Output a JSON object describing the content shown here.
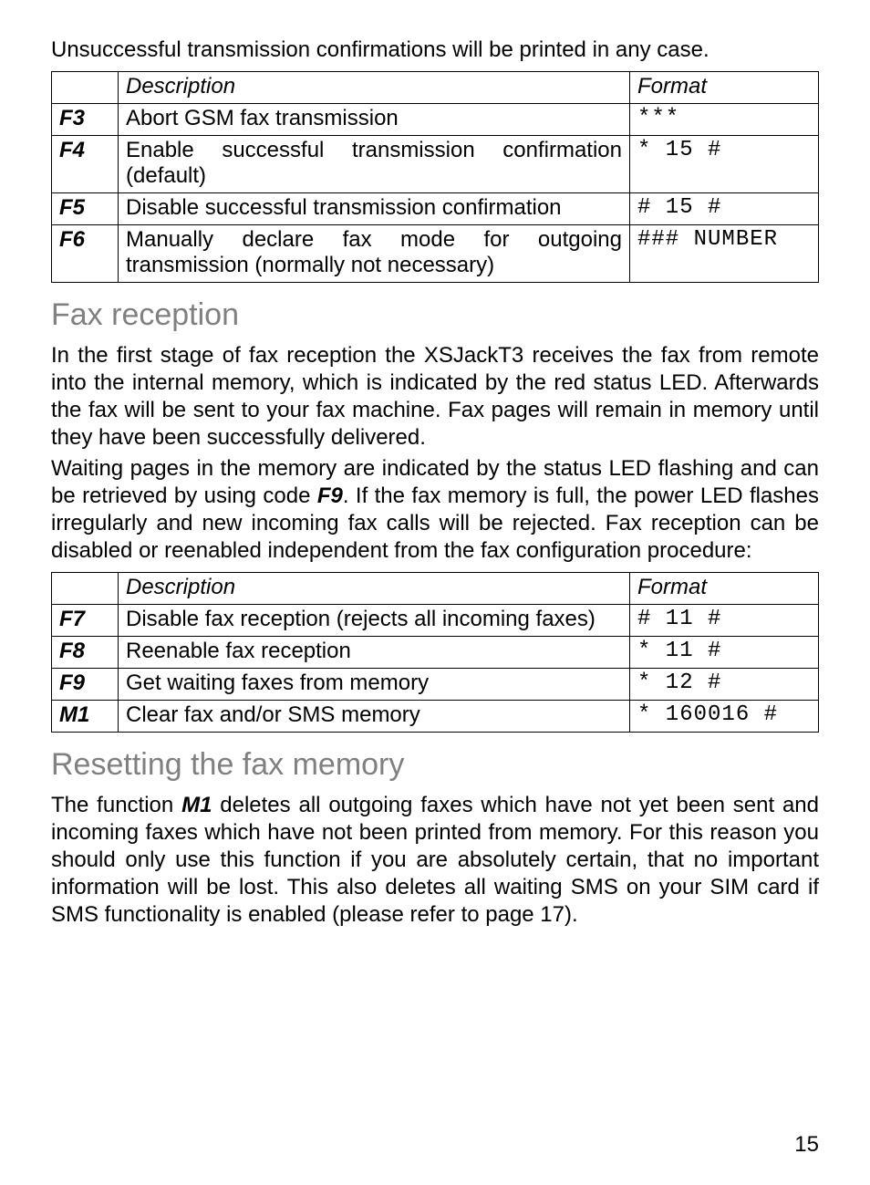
{
  "intro_line": "Unsuccessful transmission confirmations will be printed in any case.",
  "table1": {
    "headers": {
      "code": "",
      "description": "Description",
      "format": "Format"
    },
    "rows": [
      {
        "code": "F3",
        "description": "Abort GSM fax transmission",
        "format": "***"
      },
      {
        "code": "F4",
        "description": "Enable successful transmission confirma­tion (default)",
        "format": "* 15 #"
      },
      {
        "code": "F5",
        "description": "Disable successful transmission confirma­tion",
        "format": "# 15 #"
      },
      {
        "code": "F6",
        "description": "Manually declare fax mode for outgoing transmission (normally not necessary)",
        "format": "### NUMBER"
      }
    ]
  },
  "section1": {
    "title": "Fax reception",
    "para1_a": "In the first stage of fax reception the XSJackT3 receives the fax from remote into the internal memory, which is indicated by the red status LED. Afterwards the fax will be sent to your fax machine. Fax pages will remain in memory until they have been successfully delivered.",
    "para1_b_before": "Waiting pages in the memory are indicated by the status LED flashing and can be retrieved by using code ",
    "para1_b_code": "F9",
    "para1_b_after": ". If the fax memory is full, the power LED flashes irregularly and new incoming fax calls will be rejec­ted. Fax reception can be disabled or reenabled independent from the fax configuration procedure:"
  },
  "table2": {
    "headers": {
      "code": "",
      "description": "Description",
      "format": "Format"
    },
    "rows": [
      {
        "code": "F7",
        "description": "Disable fax reception (rejects all incoming faxes)",
        "format": "# 11 #"
      },
      {
        "code": "F8",
        "description": "Reenable fax reception",
        "format": "* 11 #"
      },
      {
        "code": "F9",
        "description": "Get waiting faxes from memory",
        "format": "* 12 #"
      },
      {
        "code": "M1",
        "description": "Clear fax and/or SMS memory",
        "format": "* 160016 #"
      }
    ]
  },
  "section2": {
    "title": "Resetting the fax memory",
    "para_before": "The function ",
    "para_code": "M1",
    "para_after": " deletes all outgoing faxes which have not yet been sent and incoming faxes which have not been printed from memory. For this reason you should only use this function if you are absolutely certain, that no important information will be lost. This also deletes all waiting SMS on your SIM card if SMS functionality is enabled (please refer to page 17)."
  },
  "page_number": "15",
  "colors": {
    "heading_gray": "#808080",
    "text_black": "#000000",
    "background": "#ffffff"
  },
  "typography": {
    "body_font": "Arial",
    "body_size_pt": 18,
    "heading_size_pt": 26,
    "mono_font": "Courier New"
  }
}
